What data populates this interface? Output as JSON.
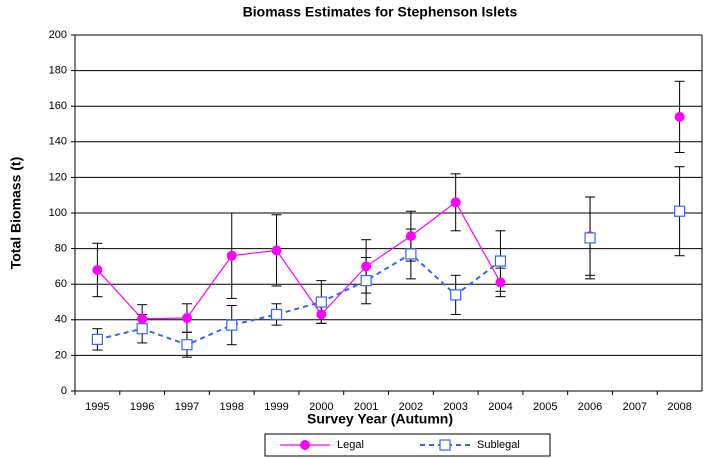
{
  "chart_data": {
    "type": "line",
    "title": "Biomass Estimates for Stephenson Islets",
    "x_label": "Survey Year (Autumn)",
    "y_label": "Total Biomass (t)",
    "categories": [
      "1995",
      "1996",
      "1997",
      "1998",
      "1999",
      "2000",
      "2001",
      "2002",
      "2003",
      "2004",
      "2005",
      "2006",
      "2007",
      "2008"
    ],
    "series": [
      {
        "name": "Legal",
        "color": "#ff00ff",
        "marker": "circle",
        "dash": false,
        "values": [
          68,
          40.5,
          41,
          76,
          79,
          43,
          70,
          87,
          106,
          61,
          null,
          87,
          null,
          154
        ],
        "errors": [
          15,
          8,
          8,
          24,
          20,
          5,
          15,
          14,
          16,
          8,
          null,
          22,
          null,
          20
        ]
      },
      {
        "name": "Sublegal",
        "color": "#3366ff",
        "marker": "square",
        "dash": true,
        "values": [
          29,
          35,
          26,
          37,
          43,
          50,
          62,
          77,
          54,
          73,
          null,
          86,
          null,
          101
        ],
        "errors": [
          6,
          8,
          7,
          11,
          6,
          12,
          13,
          14,
          11,
          17,
          null,
          23,
          null,
          25
        ]
      }
    ],
    "ylim": [
      0,
      200
    ],
    "yticks": [
      0,
      20,
      40,
      60,
      80,
      100,
      120,
      140,
      160,
      180,
      200
    ],
    "grid": true
  }
}
